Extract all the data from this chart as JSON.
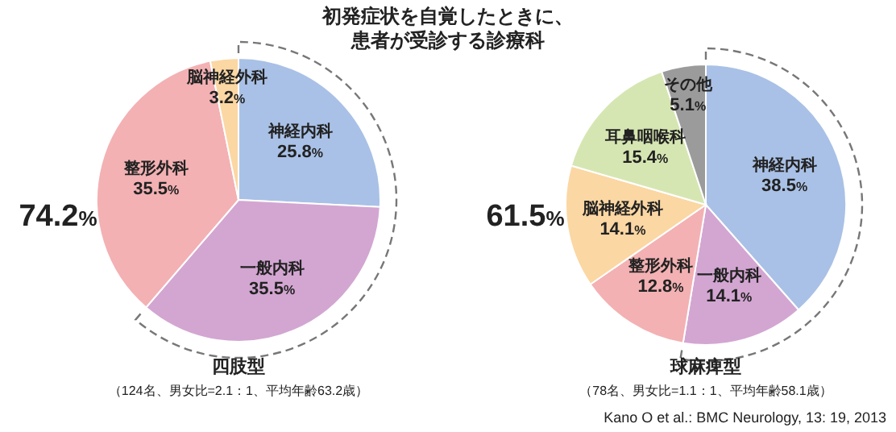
{
  "chart_data": [
    {
      "type": "pie",
      "title": "初発症状を自覚したときに、",
      "subtitle": "患者が受診する診療科",
      "xlabel": "四肢型",
      "categories": [
        "神経内科",
        "一般内科",
        "整形外科",
        "脳神経外科"
      ],
      "values": [
        25.8,
        35.5,
        35.5,
        3.2
      ],
      "colors": [
        "#a9c1e6",
        "#d3a6d2",
        "#f3b1b3",
        "#fbd7a3"
      ],
      "value_labels": [
        "25.8%",
        "35.5%",
        "35.5%",
        "3.2%"
      ],
      "annotations": [
        "（124名、男女比=2.1：1、平均年齢63.2歳）",
        "74.2%"
      ]
    },
    {
      "type": "pie",
      "xlabel": "球麻痺型",
      "categories": [
        "神経内科",
        "一般内科",
        "整形外科",
        "脳神経外科",
        "耳鼻咽喉科",
        "その他"
      ],
      "values": [
        38.5,
        14.1,
        12.8,
        14.1,
        15.4,
        5.1
      ],
      "colors": [
        "#a9c1e6",
        "#d3a6d2",
        "#f3b1b3",
        "#fbd7a3",
        "#d6e6b2",
        "#9b9b9b"
      ],
      "value_labels": [
        "38.5%",
        "14.1%",
        "12.8%",
        "14.1%",
        "15.4%",
        "5.1%"
      ],
      "annotations": [
        "（78名、男女比=1.1：1、平均年齢58.1歳）",
        "61.5%",
        "Kano O et al.: BMC Neurology, 13: 19, 2013"
      ]
    }
  ]
}
